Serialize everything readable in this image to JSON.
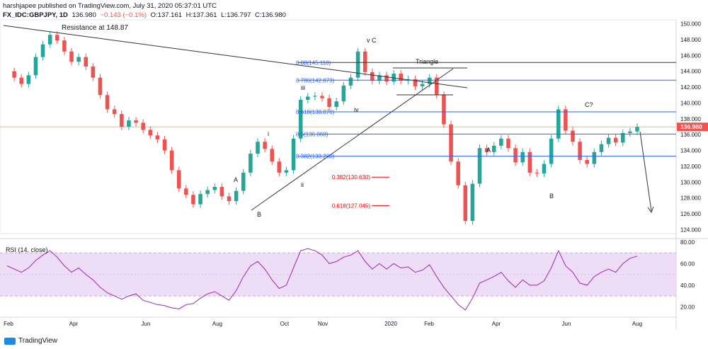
{
  "header": {
    "line1": "harshjapee published on TradingView.com, July 31, 2020 05:37:01 UTC",
    "symbol": "FX_IDC:GBPJPY, 1D",
    "last": "136.980",
    "change": "−0.143 (−0.1%)",
    "o": "O:137.161",
    "h": "H:137.361",
    "l": "L:136.797",
    "c": "C:136.980"
  },
  "brand": "TradingView",
  "colors": {
    "up": "#26a69a",
    "down": "#ef5350",
    "rsi": "#9c27b0",
    "rsiBand": "#e9d5f5",
    "fib": "#2962ff",
    "fibRed": "#ff0000",
    "price": "#f9a825"
  },
  "chart_data": [
    {
      "type": "line",
      "title": "FX_IDC:GBPJPY, 1D",
      "x_tick_labels": [
        "Feb",
        "Apr",
        "Jun",
        "Aug",
        "Oct",
        "Nov",
        "2020",
        "Feb",
        "Apr",
        "Jun",
        "Aug"
      ],
      "y_tick_labels": [
        "124.000",
        "126.000",
        "128.000",
        "130.000",
        "132.000",
        "134.000",
        "136.000",
        "138.000",
        "140.000",
        "142.000",
        "144.000",
        "146.000",
        "148.000",
        "150.000"
      ],
      "ylim": [
        123.5,
        150.5
      ],
      "last_price_label": "136.980",
      "series": [
        {
          "values": [
            144.0,
            143.2,
            142.4,
            143.5,
            145.8,
            147.4,
            148.6,
            147.9,
            146.5,
            145.2,
            145.8,
            144.6,
            143.2,
            141.0,
            139.2,
            138.6,
            137.0,
            137.8,
            137.5,
            136.6,
            135.9,
            135.4,
            134.0,
            131.5,
            129.2,
            128.4,
            127.2,
            128.5,
            129.0,
            129.4,
            128.2,
            127.6,
            128.9,
            131.2,
            133.6,
            135.1,
            134.2,
            132.6,
            131.2,
            131.5,
            135.5,
            140.4,
            140.8,
            140.9,
            140.6,
            139.5,
            140.2,
            142.2,
            143.2,
            146.5,
            143.9,
            142.8,
            143.5,
            142.7,
            143.7,
            142.8,
            143.0,
            142.1,
            142.4,
            143.2,
            141.0,
            137.3,
            132.6,
            129.6,
            125.1,
            129.8,
            134.3,
            133.8,
            134.6,
            135.5,
            134.3,
            132.5,
            133.8,
            131.2,
            131.1,
            132.3,
            135.5,
            139.2,
            136.5,
            135.1,
            132.8,
            132.3,
            133.8,
            134.8,
            135.6,
            135.0,
            136.2,
            136.4,
            136.98
          ]
        }
      ],
      "annotations": [
        "Resistance at 148.87",
        "v C",
        "Triangle",
        "i",
        "iii",
        "iv",
        "ii",
        "A",
        "B",
        "A",
        "B",
        "C?"
      ],
      "fib_levels": [
        {
          "label": "0.88(145.110)",
          "value": 145.11
        },
        {
          "label": "0.786(142.873)",
          "value": 142.873
        },
        {
          "label": "0.618(138.876)",
          "value": 138.876
        },
        {
          "label": "0.5(136.068)",
          "value": 136.068
        },
        {
          "label": "0.382(133.280)",
          "value": 133.28
        }
      ],
      "fib_targets": [
        {
          "label": "0.382(130.630)",
          "value": 130.63
        },
        {
          "label": "0.618(127.045)",
          "value": 127.045
        }
      ]
    },
    {
      "type": "line",
      "title": "RSI (14, close)",
      "y_tick_labels": [
        "20.00",
        "40.00",
        "60.00",
        "80.00"
      ],
      "ylim": [
        13,
        80
      ],
      "bands": [
        30,
        70
      ],
      "series": [
        {
          "values": [
            58,
            55,
            52,
            56,
            63,
            68,
            72,
            66,
            58,
            52,
            56,
            50,
            45,
            38,
            33,
            30,
            27,
            30,
            32,
            26,
            24,
            22,
            21,
            19,
            18,
            22,
            23,
            28,
            32,
            34,
            30,
            26,
            35,
            48,
            58,
            62,
            55,
            45,
            37,
            40,
            56,
            72,
            74,
            72,
            68,
            60,
            62,
            66,
            68,
            72,
            62,
            55,
            60,
            55,
            60,
            56,
            57,
            52,
            54,
            59,
            48,
            38,
            30,
            22,
            17,
            28,
            42,
            45,
            48,
            52,
            44,
            38,
            45,
            40,
            40,
            44,
            56,
            72,
            58,
            52,
            42,
            40,
            48,
            52,
            55,
            52,
            60,
            65,
            67
          ]
        }
      ]
    }
  ]
}
